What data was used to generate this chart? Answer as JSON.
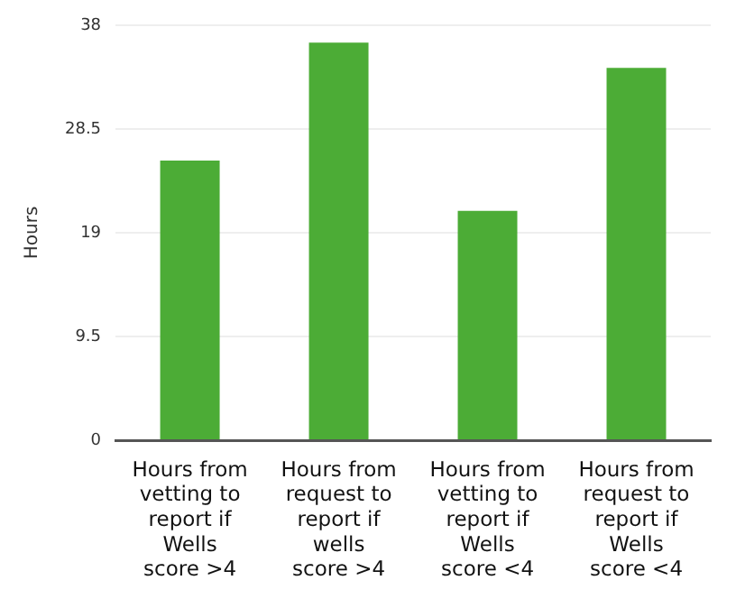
{
  "chart_data": {
    "type": "bar",
    "ylabel": "Hours",
    "categories": [
      "Hours from vetting to report if Wells score >4",
      "Hours from request to report if wells score >4",
      "Hours from vetting to report if Wells score <4",
      "Hours from request to report if Wells score <4"
    ],
    "values": [
      25.6,
      36.4,
      21.0,
      34.1
    ],
    "color": "#4cac36",
    "ylim": [
      0,
      38
    ],
    "yticks": [
      0,
      9.5,
      19,
      28.5,
      38
    ],
    "grid": "y",
    "legend": false
  }
}
